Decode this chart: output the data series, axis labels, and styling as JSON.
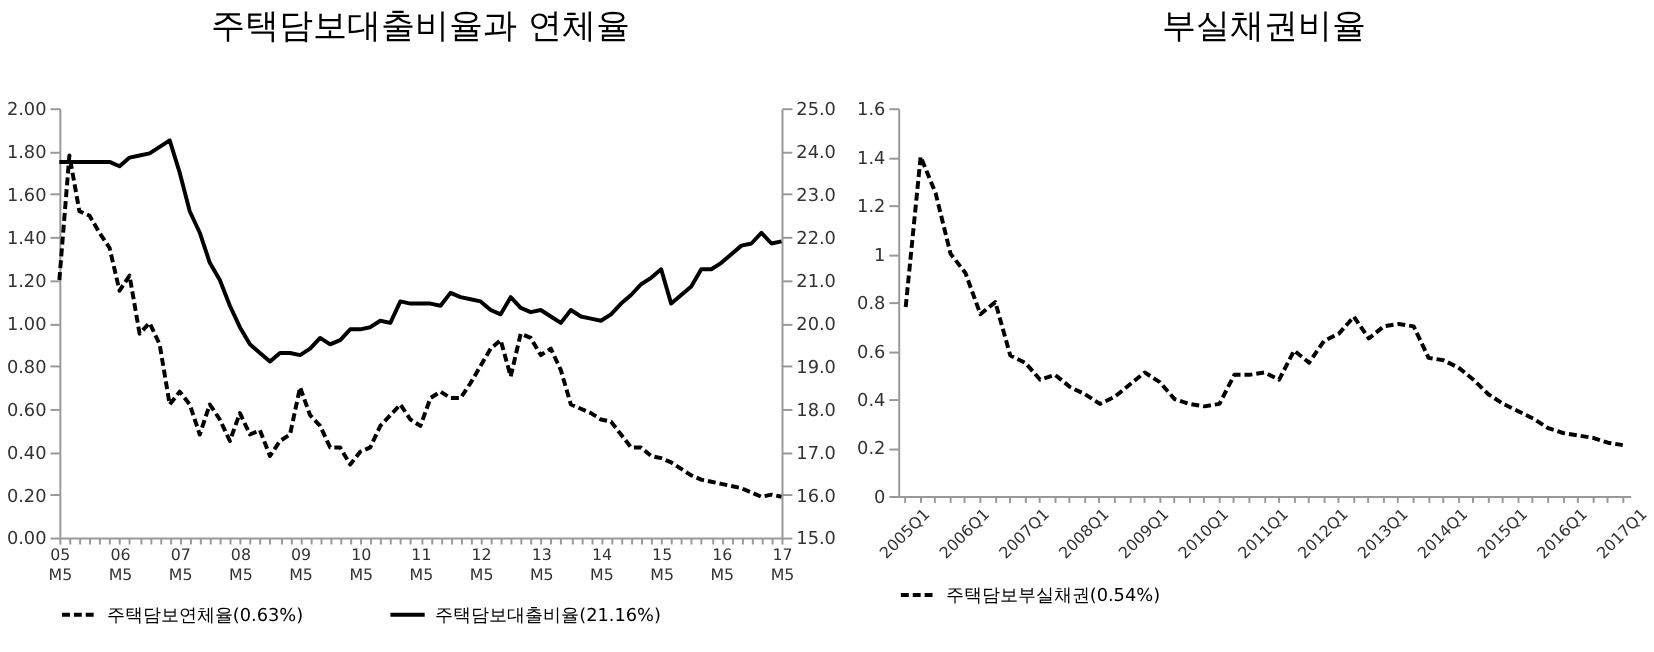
{
  "chart_data": [
    {
      "type": "line",
      "title": "주택담보대출비율과 연체율",
      "categories": [
        "05 M5",
        null,
        null,
        null,
        null,
        null,
        "06 M5",
        null,
        null,
        null,
        null,
        null,
        "07 M5",
        null,
        null,
        null,
        null,
        null,
        "08 M5",
        null,
        null,
        null,
        null,
        null,
        "09 M5",
        null,
        null,
        null,
        null,
        null,
        "10 M5",
        null,
        null,
        null,
        null,
        null,
        "11 M5",
        null,
        null,
        null,
        null,
        null,
        "12 M5",
        null,
        null,
        null,
        null,
        null,
        "13 M5",
        null,
        null,
        null,
        null,
        null,
        "14 M5",
        null,
        null,
        null,
        null,
        null,
        "15 M5",
        null,
        null,
        null,
        null,
        null,
        "16 M5",
        null,
        null,
        null,
        null,
        null,
        "17 M5"
      ],
      "series": [
        {
          "name": "주택담보연체율(0.63%)",
          "color": "#000000",
          "line_style": "dashed",
          "values": [
            1.2,
            1.78,
            1.52,
            1.5,
            1.42,
            1.35,
            1.15,
            1.22,
            0.95,
            1.0,
            0.9,
            0.62,
            0.68,
            0.62,
            0.48,
            0.62,
            0.55,
            0.45,
            0.58,
            0.48,
            0.5,
            0.38,
            0.45,
            0.48,
            0.7,
            0.57,
            0.52,
            0.42,
            0.42,
            0.34,
            0.4,
            0.42,
            0.52,
            0.57,
            0.62,
            0.55,
            0.52,
            0.65,
            0.68,
            0.65,
            0.65,
            0.72,
            0.8,
            0.88,
            0.92,
            0.75,
            0.95,
            0.93,
            0.85,
            0.88,
            0.78,
            0.62,
            0.6,
            0.58,
            0.55,
            0.54,
            0.48,
            0.42,
            0.42,
            0.38,
            0.37,
            0.35,
            0.32,
            0.29,
            0.27,
            0.26,
            0.25,
            0.24,
            0.23,
            0.21,
            0.19,
            0.2,
            0.19
          ]
        },
        {
          "name": "주택담보대출비율(21.16%)",
          "color": "#000000",
          "line_style": "solid",
          "axis": "y2",
          "values": [
            23.75,
            23.75,
            23.75,
            23.75,
            23.75,
            23.75,
            23.65,
            23.85,
            23.9,
            23.95,
            24.1,
            24.25,
            23.5,
            22.6,
            22.1,
            21.4,
            21.0,
            20.4,
            19.9,
            19.5,
            19.3,
            19.1,
            19.3,
            19.3,
            19.25,
            19.4,
            19.65,
            19.5,
            19.6,
            19.85,
            19.85,
            19.9,
            20.05,
            20.0,
            20.5,
            20.45,
            20.45,
            20.45,
            20.4,
            20.7,
            20.6,
            20.55,
            20.5,
            20.3,
            20.2,
            20.6,
            20.35,
            20.25,
            20.3,
            20.15,
            20.0,
            20.3,
            20.15,
            20.1,
            20.05,
            20.2,
            20.45,
            20.65,
            20.9,
            21.05,
            21.25,
            20.45,
            20.65,
            20.85,
            21.25,
            21.25,
            21.4,
            21.6,
            21.8,
            21.85,
            22.1,
            21.85,
            21.9
          ]
        }
      ],
      "ylim": [
        0,
        2
      ],
      "yticks": [
        {
          "value": 0,
          "label": "0.00"
        },
        {
          "value": 0.2,
          "label": "0.20"
        },
        {
          "value": 0.4,
          "label": "0.40"
        },
        {
          "value": 0.6,
          "label": "0.60"
        },
        {
          "value": 0.8,
          "label": "0.80"
        },
        {
          "value": 1,
          "label": "1.00"
        },
        {
          "value": 1.2,
          "label": "1.20"
        },
        {
          "value": 1.4,
          "label": "1.40"
        },
        {
          "value": 1.6,
          "label": "1.60"
        },
        {
          "value": 1.8,
          "label": "1.80"
        },
        {
          "value": 2,
          "label": "2.00"
        }
      ],
      "y2lim": [
        15,
        25
      ],
      "y2ticks": [
        {
          "value": 15,
          "label": "15.0"
        },
        {
          "value": 16,
          "label": "16.0"
        },
        {
          "value": 17,
          "label": "17.0"
        },
        {
          "value": 18,
          "label": "18.0"
        },
        {
          "value": 19,
          "label": "19.0"
        },
        {
          "value": 20,
          "label": "20.0"
        },
        {
          "value": 21,
          "label": "21.0"
        },
        {
          "value": 22,
          "label": "22.0"
        },
        {
          "value": 23,
          "label": "23.0"
        },
        {
          "value": 24,
          "label": "24.0"
        },
        {
          "value": 25,
          "label": "25.0"
        }
      ],
      "legend": "bottom"
    },
    {
      "type": "line",
      "title": "부실채권비율",
      "categories": [
        "2005Q1",
        null,
        null,
        null,
        "2006Q1",
        null,
        null,
        null,
        "2007Q1",
        null,
        null,
        null,
        "2008Q1",
        null,
        null,
        null,
        "2009Q1",
        null,
        null,
        null,
        "2010Q1",
        null,
        null,
        null,
        "2011Q1",
        null,
        null,
        null,
        "2012Q1",
        null,
        null,
        null,
        "2013Q1",
        null,
        null,
        null,
        "2014Q1",
        null,
        null,
        null,
        "2015Q1",
        null,
        null,
        null,
        "2016Q1",
        null,
        null,
        null,
        "2017Q1"
      ],
      "series": [
        {
          "name": "주택담보부실채권(0.54%)",
          "color": "#000000",
          "line_style": "dashed",
          "values": [
            0.78,
            1.4,
            1.25,
            1.0,
            0.92,
            0.75,
            0.8,
            0.58,
            0.55,
            0.48,
            0.5,
            0.45,
            0.42,
            0.38,
            0.41,
            0.46,
            0.51,
            0.47,
            0.4,
            0.38,
            0.37,
            0.38,
            0.5,
            0.5,
            0.51,
            0.48,
            0.6,
            0.55,
            0.64,
            0.67,
            0.74,
            0.65,
            0.7,
            0.71,
            0.7,
            0.57,
            0.56,
            0.53,
            0.48,
            0.42,
            0.38,
            0.35,
            0.32,
            0.28,
            0.26,
            0.25,
            0.24,
            0.22,
            0.21
          ]
        }
      ],
      "ylim": [
        0,
        1.6
      ],
      "yticks": [
        0,
        0.2,
        0.4,
        0.6,
        0.8,
        1,
        1.2,
        1.4,
        1.6
      ],
      "legend": "bottom"
    }
  ]
}
